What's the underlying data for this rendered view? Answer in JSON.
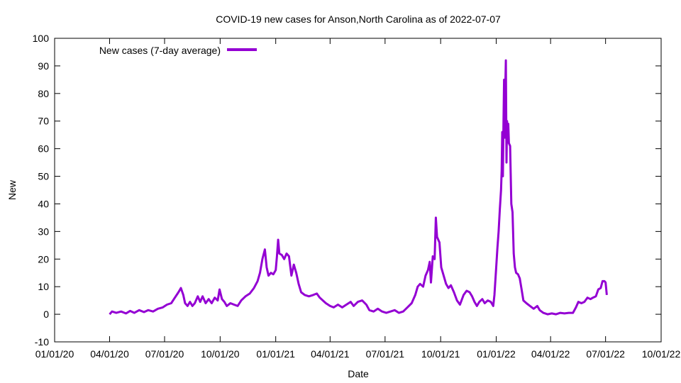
{
  "chart_data": {
    "type": "line",
    "title": "COVID-19 new cases for Anson,North Carolina as of 2022-07-07",
    "xlabel": "Date",
    "ylabel": "New",
    "ylim": [
      -10,
      100
    ],
    "yticks": [
      -10,
      0,
      10,
      20,
      30,
      40,
      50,
      60,
      70,
      80,
      90,
      100
    ],
    "xlim": [
      "2020-01-01",
      "2022-10-01"
    ],
    "xticks": [
      {
        "date": "2020-01-01",
        "label": "01/01/20"
      },
      {
        "date": "2020-04-01",
        "label": "04/01/20"
      },
      {
        "date": "2020-07-01",
        "label": "07/01/20"
      },
      {
        "date": "2020-10-01",
        "label": "10/01/20"
      },
      {
        "date": "2021-01-01",
        "label": "01/01/21"
      },
      {
        "date": "2021-04-01",
        "label": "04/01/21"
      },
      {
        "date": "2021-07-01",
        "label": "07/01/21"
      },
      {
        "date": "2021-10-01",
        "label": "10/01/21"
      },
      {
        "date": "2022-01-01",
        "label": "01/01/22"
      },
      {
        "date": "2022-04-01",
        "label": "04/01/22"
      },
      {
        "date": "2022-07-01",
        "label": "07/01/22"
      },
      {
        "date": "2022-10-01",
        "label": "10/01/22"
      }
    ],
    "grid": false,
    "legend_position": "top-left",
    "series": [
      {
        "name": "New cases (7-day average)",
        "color": "#9400d3",
        "points": [
          [
            "2020-04-01",
            0
          ],
          [
            "2020-04-05",
            1
          ],
          [
            "2020-04-12",
            0.5
          ],
          [
            "2020-04-20",
            1
          ],
          [
            "2020-04-28",
            0.3
          ],
          [
            "2020-05-05",
            1.2
          ],
          [
            "2020-05-12",
            0.5
          ],
          [
            "2020-05-20",
            1.5
          ],
          [
            "2020-05-28",
            0.8
          ],
          [
            "2020-06-04",
            1.5
          ],
          [
            "2020-06-12",
            1.0
          ],
          [
            "2020-06-20",
            2.0
          ],
          [
            "2020-06-28",
            2.5
          ],
          [
            "2020-07-05",
            3.5
          ],
          [
            "2020-07-12",
            4.0
          ],
          [
            "2020-07-18",
            6.0
          ],
          [
            "2020-07-24",
            8.0
          ],
          [
            "2020-07-28",
            9.5
          ],
          [
            "2020-08-01",
            7.0
          ],
          [
            "2020-08-04",
            4.0
          ],
          [
            "2020-08-08",
            3.0
          ],
          [
            "2020-08-12",
            4.5
          ],
          [
            "2020-08-16",
            3.0
          ],
          [
            "2020-08-20",
            4.0
          ],
          [
            "2020-08-25",
            6.5
          ],
          [
            "2020-08-29",
            4.5
          ],
          [
            "2020-09-02",
            6.5
          ],
          [
            "2020-09-07",
            4.0
          ],
          [
            "2020-09-12",
            5.5
          ],
          [
            "2020-09-17",
            4.0
          ],
          [
            "2020-09-22",
            6.0
          ],
          [
            "2020-09-27",
            5.0
          ],
          [
            "2020-09-30",
            9.0
          ],
          [
            "2020-10-04",
            5.5
          ],
          [
            "2020-10-08",
            4.5
          ],
          [
            "2020-10-12",
            3.0
          ],
          [
            "2020-10-18",
            4.0
          ],
          [
            "2020-10-24",
            3.5
          ],
          [
            "2020-10-30",
            3.0
          ],
          [
            "2020-11-05",
            5.0
          ],
          [
            "2020-11-12",
            6.5
          ],
          [
            "2020-11-19",
            7.5
          ],
          [
            "2020-11-26",
            9.5
          ],
          [
            "2020-12-02",
            12.0
          ],
          [
            "2020-12-06",
            15.0
          ],
          [
            "2020-12-10",
            20.0
          ],
          [
            "2020-12-14",
            23.5
          ],
          [
            "2020-12-17",
            17.0
          ],
          [
            "2020-12-20",
            14.0
          ],
          [
            "2020-12-24",
            15.0
          ],
          [
            "2020-12-28",
            14.5
          ],
          [
            "2021-01-01",
            16.0
          ],
          [
            "2021-01-03",
            21.0
          ],
          [
            "2021-01-05",
            27.0
          ],
          [
            "2021-01-07",
            22.0
          ],
          [
            "2021-01-11",
            21.5
          ],
          [
            "2021-01-15",
            20.0
          ],
          [
            "2021-01-19",
            22.0
          ],
          [
            "2021-01-23",
            21.0
          ],
          [
            "2021-01-27",
            14.0
          ],
          [
            "2021-01-31",
            18.0
          ],
          [
            "2021-02-04",
            15.0
          ],
          [
            "2021-02-08",
            11.0
          ],
          [
            "2021-02-12",
            8.0
          ],
          [
            "2021-02-18",
            7.0
          ],
          [
            "2021-02-25",
            6.5
          ],
          [
            "2021-03-04",
            7.0
          ],
          [
            "2021-03-10",
            7.5
          ],
          [
            "2021-03-15",
            6.0
          ],
          [
            "2021-03-20",
            5.0
          ],
          [
            "2021-03-25",
            4.0
          ],
          [
            "2021-04-01",
            3.0
          ],
          [
            "2021-04-07",
            2.5
          ],
          [
            "2021-04-14",
            3.5
          ],
          [
            "2021-04-21",
            2.5
          ],
          [
            "2021-04-28",
            3.5
          ],
          [
            "2021-05-05",
            4.5
          ],
          [
            "2021-05-10",
            3.0
          ],
          [
            "2021-05-17",
            4.5
          ],
          [
            "2021-05-24",
            5.0
          ],
          [
            "2021-05-31",
            3.5
          ],
          [
            "2021-06-05",
            1.5
          ],
          [
            "2021-06-12",
            1.0
          ],
          [
            "2021-06-19",
            2.0
          ],
          [
            "2021-06-26",
            1.0
          ],
          [
            "2021-07-03",
            0.5
          ],
          [
            "2021-07-10",
            1.0
          ],
          [
            "2021-07-17",
            1.5
          ],
          [
            "2021-07-24",
            0.5
          ],
          [
            "2021-07-31",
            1.0
          ],
          [
            "2021-08-07",
            2.5
          ],
          [
            "2021-08-14",
            4.0
          ],
          [
            "2021-08-20",
            7.0
          ],
          [
            "2021-08-24",
            10.0
          ],
          [
            "2021-08-28",
            11.0
          ],
          [
            "2021-09-02",
            10.0
          ],
          [
            "2021-09-06",
            14.0
          ],
          [
            "2021-09-10",
            16.0
          ],
          [
            "2021-09-13",
            19.0
          ],
          [
            "2021-09-15",
            11.5
          ],
          [
            "2021-09-18",
            21.0
          ],
          [
            "2021-09-21",
            20.0
          ],
          [
            "2021-09-23",
            35.0
          ],
          [
            "2021-09-25",
            28.0
          ],
          [
            "2021-09-29",
            26.0
          ],
          [
            "2021-10-02",
            17.0
          ],
          [
            "2021-10-06",
            14.0
          ],
          [
            "2021-10-10",
            11.0
          ],
          [
            "2021-10-14",
            9.5
          ],
          [
            "2021-10-18",
            10.5
          ],
          [
            "2021-10-23",
            8.0
          ],
          [
            "2021-10-28",
            5.0
          ],
          [
            "2021-11-02",
            3.5
          ],
          [
            "2021-11-08",
            7.0
          ],
          [
            "2021-11-13",
            8.5
          ],
          [
            "2021-11-18",
            8.0
          ],
          [
            "2021-11-22",
            6.5
          ],
          [
            "2021-11-26",
            4.5
          ],
          [
            "2021-11-30",
            3.0
          ],
          [
            "2021-12-04",
            4.5
          ],
          [
            "2021-12-09",
            5.5
          ],
          [
            "2021-12-13",
            4.0
          ],
          [
            "2021-12-18",
            5.0
          ],
          [
            "2021-12-23",
            4.5
          ],
          [
            "2021-12-27",
            3.0
          ],
          [
            "2021-12-29",
            7.0
          ],
          [
            "2022-01-01",
            17.0
          ],
          [
            "2022-01-03",
            24.0
          ],
          [
            "2022-01-05",
            30.0
          ],
          [
            "2022-01-07",
            38.0
          ],
          [
            "2022-01-09",
            45.0
          ],
          [
            "2022-01-10",
            52.0
          ],
          [
            "2022-01-11",
            66.0
          ],
          [
            "2022-01-12",
            50.0
          ],
          [
            "2022-01-13",
            68.0
          ],
          [
            "2022-01-14",
            85.0
          ],
          [
            "2022-01-15",
            64.0
          ],
          [
            "2022-01-16",
            82.0
          ],
          [
            "2022-01-17",
            92.0
          ],
          [
            "2022-01-18",
            55.0
          ],
          [
            "2022-01-19",
            70.0
          ],
          [
            "2022-01-20",
            65.0
          ],
          [
            "2022-01-21",
            69.0
          ],
          [
            "2022-01-22",
            62.0
          ],
          [
            "2022-01-24",
            61.0
          ],
          [
            "2022-01-26",
            40.0
          ],
          [
            "2022-01-28",
            37.0
          ],
          [
            "2022-01-30",
            22.0
          ],
          [
            "2022-02-01",
            17.0
          ],
          [
            "2022-02-03",
            15.0
          ],
          [
            "2022-02-06",
            14.5
          ],
          [
            "2022-02-09",
            13.0
          ],
          [
            "2022-02-12",
            9.0
          ],
          [
            "2022-02-15",
            5.0
          ],
          [
            "2022-02-20",
            4.0
          ],
          [
            "2022-02-26",
            3.0
          ],
          [
            "2022-03-04",
            2.0
          ],
          [
            "2022-03-10",
            3.0
          ],
          [
            "2022-03-14",
            1.5
          ],
          [
            "2022-03-20",
            0.5
          ],
          [
            "2022-03-27",
            0
          ],
          [
            "2022-04-03",
            0.3
          ],
          [
            "2022-04-10",
            0
          ],
          [
            "2022-04-17",
            0.5
          ],
          [
            "2022-04-24",
            0.3
          ],
          [
            "2022-05-01",
            0.5
          ],
          [
            "2022-05-08",
            0.5
          ],
          [
            "2022-05-13",
            2.5
          ],
          [
            "2022-05-17",
            4.5
          ],
          [
            "2022-05-22",
            4.0
          ],
          [
            "2022-05-27",
            4.5
          ],
          [
            "2022-06-01",
            6.0
          ],
          [
            "2022-06-06",
            5.5
          ],
          [
            "2022-06-10",
            6.0
          ],
          [
            "2022-06-15",
            6.5
          ],
          [
            "2022-06-19",
            9.0
          ],
          [
            "2022-06-23",
            9.5
          ],
          [
            "2022-06-26",
            12.0
          ],
          [
            "2022-06-29",
            12.0
          ],
          [
            "2022-07-01",
            11.5
          ],
          [
            "2022-07-03",
            7.0
          ]
        ]
      }
    ]
  }
}
